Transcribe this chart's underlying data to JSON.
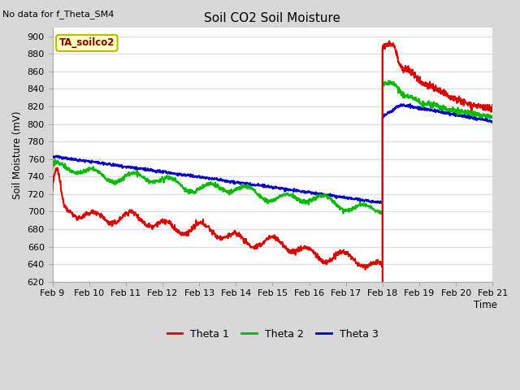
{
  "title": "Soil CO2 Soil Moisture",
  "no_data_text": "No data for f_Theta_SM4",
  "box_label": "TA_soilco2",
  "ylabel": "Soil Moisture (mV)",
  "xlabel": "Time",
  "ylim": [
    620,
    910
  ],
  "yticks": [
    620,
    640,
    660,
    680,
    700,
    720,
    740,
    760,
    780,
    800,
    820,
    840,
    860,
    880,
    900
  ],
  "x_start": 0.0,
  "x_end": 12.0,
  "xtick_labels": [
    "Feb 9",
    "Feb 10",
    "Feb 11",
    "Feb 12",
    "Feb 13",
    "Feb 14",
    "Feb 15",
    "Feb 16",
    "Feb 17",
    "Feb 18",
    "Feb 19",
    "Feb 20",
    "Feb 21"
  ],
  "xtick_positions": [
    0,
    1,
    2,
    3,
    4,
    5,
    6,
    7,
    8,
    9,
    10,
    11,
    12
  ],
  "fig_bg_color": "#d8d8d8",
  "plot_bg_color": "#ffffff",
  "grid_color": "#e0e0e0",
  "theta1_color": "#dd0000",
  "theta2_color": "#00bb00",
  "theta3_color": "#0000cc",
  "legend_entries": [
    "Theta 1",
    "Theta 2",
    "Theta 3"
  ]
}
